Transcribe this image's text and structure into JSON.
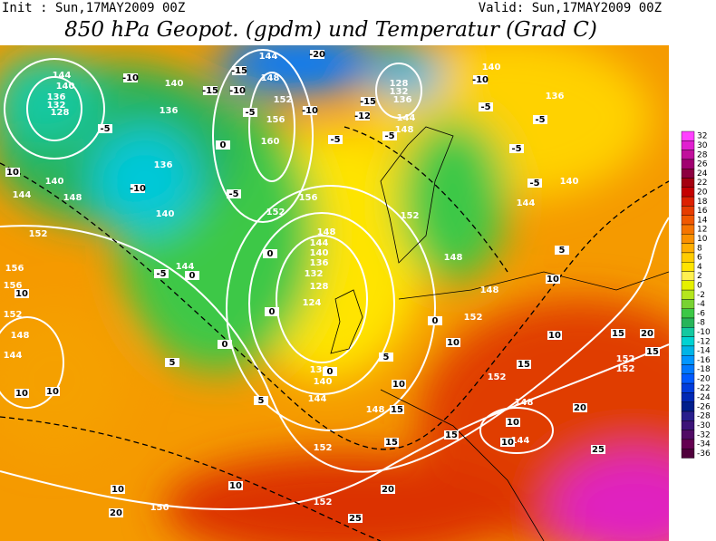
{
  "header": {
    "init": "Init : Sun,17MAY2009 00Z",
    "valid": "Valid: Sun,17MAY2009 00Z",
    "title": "850 hPa Geopot. (gpdm) und Temperatur (Grad C)"
  },
  "colorbar": {
    "ticks": [
      32,
      30,
      28,
      26,
      24,
      22,
      20,
      18,
      16,
      14,
      12,
      10,
      8,
      6,
      4,
      2,
      0,
      -2,
      -4,
      -6,
      -8,
      -10,
      -12,
      -14,
      -16,
      -18,
      -20,
      -22,
      -24,
      -26,
      -28,
      -30,
      -32,
      -34,
      -36
    ],
    "colors": [
      "#ff40ff",
      "#e020d0",
      "#c0109c",
      "#a00070",
      "#8c0040",
      "#a40010",
      "#c40000",
      "#dc2000",
      "#e63c00",
      "#f05800",
      "#f57400",
      "#fa9000",
      "#ffae00",
      "#ffcc00",
      "#ffe400",
      "#fff050",
      "#e6f000",
      "#b4e61e",
      "#78d232",
      "#3cc846",
      "#28b45a",
      "#14c8a0",
      "#00d2d2",
      "#00b4e6",
      "#0096ff",
      "#0078ff",
      "#005aff",
      "#003cdc",
      "#0028b4",
      "#001e8c",
      "#281e8c",
      "#3c1478",
      "#500a64",
      "#640050",
      "#50003c"
    ]
  },
  "geopotential_labels": [
    "144",
    "140",
    "136",
    "132",
    "128",
    "144",
    "148",
    "140",
    "136",
    "152",
    "156",
    "160",
    "136",
    "140",
    "148",
    "144",
    "152",
    "140",
    "144",
    "156",
    "156",
    "152",
    "148",
    "144",
    "156",
    "152",
    "148",
    "144",
    "140",
    "136",
    "132",
    "128",
    "124",
    "136",
    "140",
    "144",
    "148",
    "152",
    "156",
    "152",
    "128",
    "132",
    "136",
    "144",
    "148",
    "152",
    "148",
    "148",
    "152",
    "152",
    "148",
    "144",
    "152",
    "152",
    "140",
    "144",
    "136",
    "140"
  ],
  "temperature_labels": [
    "-20",
    "-15",
    "-10",
    "-15",
    "-10",
    "-5",
    "-10",
    "-15",
    "-12",
    "-5",
    "-5",
    "-10",
    "-5",
    "-5",
    "-10",
    "-5",
    "-5",
    "-5",
    "0",
    "-5",
    "0",
    "0",
    "-5",
    "10",
    "10",
    "10",
    "10",
    "0",
    "0",
    "0",
    "5",
    "0",
    "5",
    "5",
    "10",
    "5",
    "10",
    "10",
    "15",
    "15",
    "15",
    "15",
    "15",
    "10",
    "20",
    "20",
    "20",
    "25",
    "10",
    "10",
    "20",
    "25",
    "10",
    "15",
    "10"
  ]
}
